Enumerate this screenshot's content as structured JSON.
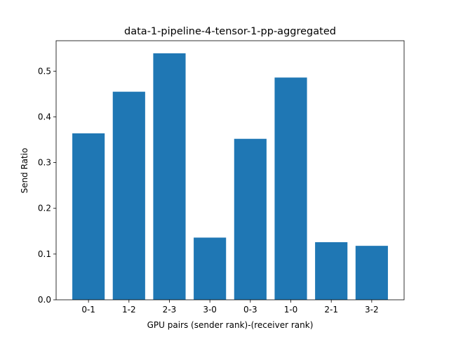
{
  "chart_data": {
    "type": "bar",
    "title": "data-1-pipeline-4-tensor-1-pp-aggregated",
    "xlabel": "GPU pairs (sender rank)-(receiver rank)",
    "ylabel": "Send Ratio",
    "categories": [
      "0-1",
      "1-2",
      "2-3",
      "3-0",
      "0-3",
      "1-0",
      "2-1",
      "3-2"
    ],
    "values": [
      0.364,
      0.455,
      0.539,
      0.136,
      0.352,
      0.486,
      0.126,
      0.118
    ],
    "ylim": [
      0,
      0.5665
    ],
    "yticks": [
      0.0,
      0.1,
      0.2,
      0.3,
      0.4,
      0.5
    ],
    "ytick_labels": [
      "0.0",
      "0.1",
      "0.2",
      "0.3",
      "0.4",
      "0.5"
    ],
    "bar_color": "#1f77b4",
    "grid": false,
    "legend": "none"
  }
}
